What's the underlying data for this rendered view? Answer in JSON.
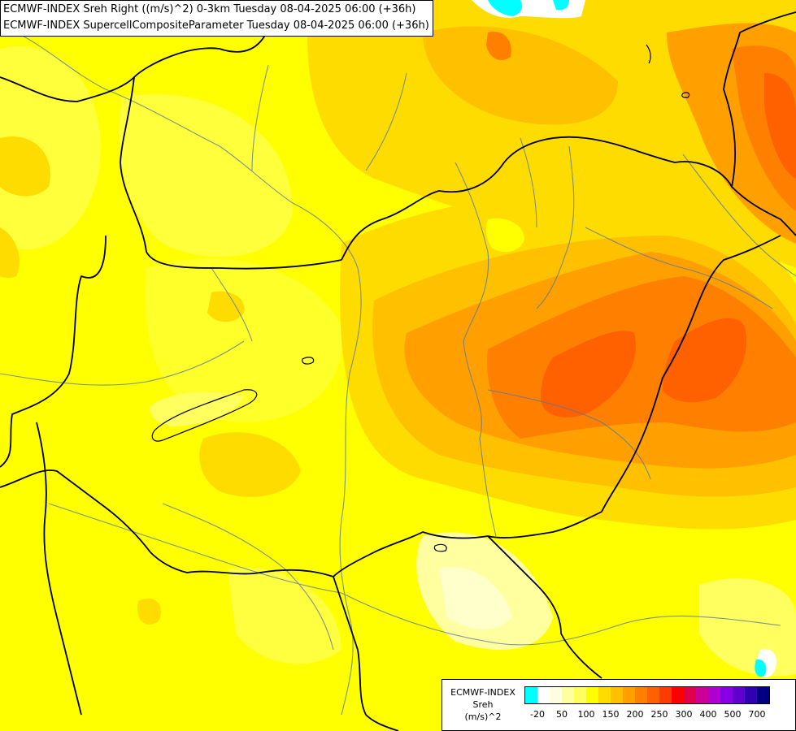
{
  "titles": {
    "line1": "ECMWF-INDEX Sreh Right ((m/s)^2) 0-3km Tuesday 08-04-2025 06:00 (+36h)",
    "line2": "ECMWF-INDEX SupercellCompositeParameter Tuesday 08-04-2025 06:00 (+36h)"
  },
  "legend": {
    "source": "ECMWF-INDEX",
    "parameter": "Sreh",
    "unit": "(m/s)^2",
    "colors": [
      "#00ffff",
      "#ffffff",
      "#ffffe0",
      "#ffffa0",
      "#ffff60",
      "#ffff00",
      "#ffdc00",
      "#ffc000",
      "#ffa000",
      "#ff8000",
      "#ff6000",
      "#ff3c00",
      "#ff0000",
      "#e0004c",
      "#cc0099",
      "#b000d0",
      "#8a00e6",
      "#6000d0",
      "#3000b0",
      "#000080"
    ],
    "ticks": [
      {
        "label": "-20",
        "index": 1
      },
      {
        "label": "50",
        "index": 3
      },
      {
        "label": "100",
        "index": 5
      },
      {
        "label": "150",
        "index": 7
      },
      {
        "label": "200",
        "index": 9
      },
      {
        "label": "250",
        "index": 11
      },
      {
        "label": "300",
        "index": 13
      },
      {
        "label": "400",
        "index": 15
      },
      {
        "label": "500",
        "index": 17
      },
      {
        "label": "700",
        "index": 19
      }
    ]
  }
}
